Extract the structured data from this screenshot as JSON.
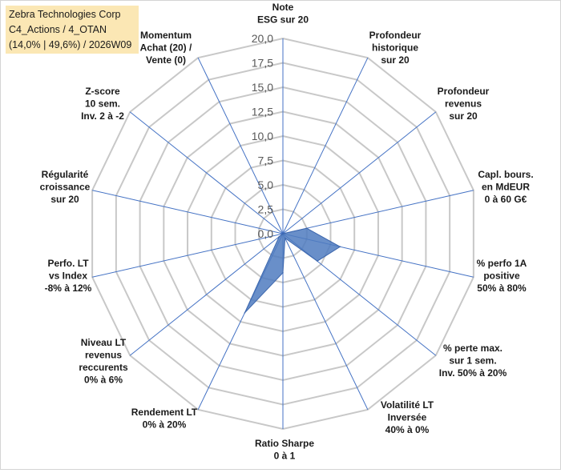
{
  "header": {
    "line1": "Zebra Technologies Corp",
    "line2": "C4_Actions / 4_OTAN",
    "line3": "(14,0% | 49,6%) / 2026W09"
  },
  "chart_data": {
    "type": "radar",
    "title": "Zebra Technologies Corp",
    "subtitle": "C4_Actions / 4_OTAN (14,0% | 49,6%) / 2026W09",
    "scale": {
      "min": 0,
      "max": 20,
      "step": 2.5
    },
    "tick_labels": [
      "0,0",
      "2,5",
      "5,0",
      "7,5",
      "10,0",
      "12,5",
      "15,0",
      "17,5",
      "20,0"
    ],
    "axes": [
      {
        "label": [
          "Note",
          "ESG sur 20"
        ]
      },
      {
        "label": [
          "Profondeur",
          "historique",
          "sur 20"
        ]
      },
      {
        "label": [
          "Profondeur",
          "revenus",
          "sur 20"
        ]
      },
      {
        "label": [
          "Capl. bours.",
          "en MdEUR",
          "0 à 60 G€"
        ]
      },
      {
        "label": [
          "% perfo 1A",
          "positive",
          "50% à 80%"
        ]
      },
      {
        "label": [
          "% perte max.",
          "sur 1 sem.",
          "Inv. 50% à 20%"
        ]
      },
      {
        "label": [
          "Volatilité LT",
          "Inversée",
          "40% à 0%"
        ]
      },
      {
        "label": [
          "Ratio Sharpe",
          "0 à 1"
        ]
      },
      {
        "label": [
          "Rendement LT",
          "0% à 20%"
        ]
      },
      {
        "label": [
          "Niveau LT",
          "revenus",
          "reccurents",
          "0% à 6%"
        ]
      },
      {
        "label": [
          "Perfo. LT",
          "vs Index",
          "-8% à 12%"
        ]
      },
      {
        "label": [
          "Régularité",
          "croissance",
          "sur 20"
        ]
      },
      {
        "label": [
          "Z-score",
          "10 sem.",
          "Inv. 2 à -2"
        ]
      },
      {
        "label": [
          "Momentum",
          "Achat (20) /",
          "Vente (0)"
        ]
      }
    ],
    "series": [
      {
        "values": [
          0,
          0,
          0,
          2.5,
          6.0,
          4.5,
          0.5,
          4.0,
          9.0,
          0.5,
          0,
          0,
          0,
          0
        ],
        "color": "#4f7bbf"
      }
    ],
    "grid": true,
    "legend": "none"
  }
}
